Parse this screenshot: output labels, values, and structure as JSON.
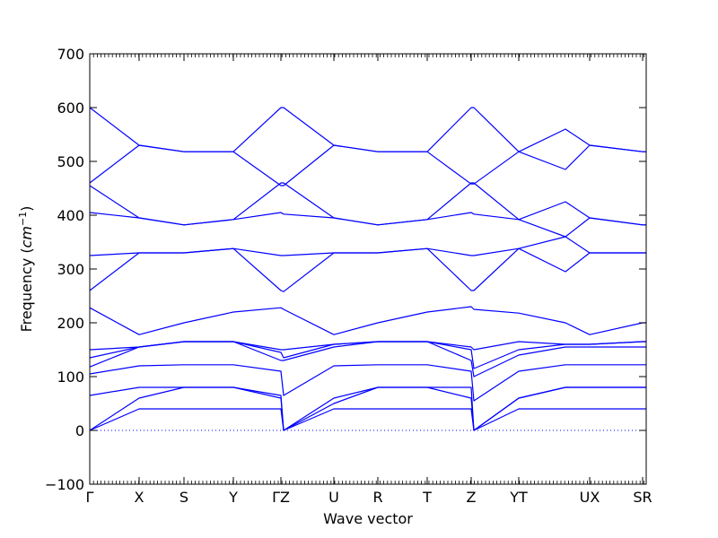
{
  "chart_data": {
    "type": "line",
    "title": "",
    "xlabel": "Wave vector",
    "ylabel_main": "Frequency (",
    "ylabel_unit": "cm",
    "ylabel_exp": "−1",
    "ylabel_close": ")",
    "ylim": [
      -100,
      700
    ],
    "yticks": [
      -100,
      0,
      100,
      200,
      300,
      400,
      500,
      600,
      700
    ],
    "x_tick_labels": [
      "Γ",
      "X",
      "S",
      "Y",
      "ΓZ",
      "U",
      "R",
      "T",
      "Z",
      "YT",
      "UX",
      "SR"
    ],
    "x_segments": [
      {
        "from": "Γ",
        "to": "X"
      },
      {
        "from": "X",
        "to": "S"
      },
      {
        "from": "S",
        "to": "Y"
      },
      {
        "from": "Y",
        "to": "Γ"
      },
      {
        "from": "Z",
        "to": "U"
      },
      {
        "from": "U",
        "to": "R"
      },
      {
        "from": "R",
        "to": "T"
      },
      {
        "from": "T",
        "to": "Z"
      },
      {
        "from": "Z",
        "to": "Y"
      },
      {
        "from": "T",
        "to": "U"
      },
      {
        "from": "X",
        "to": "S"
      },
      {
        "from": "R",
        "to": ""
      }
    ],
    "grid": false,
    "line_color": "#0000ff",
    "zero_line_color": "#0000ff",
    "zero_line_style": "dotted",
    "bands": [
      [
        0,
        40,
        40,
        40,
        40,
        0,
        40,
        40,
        40,
        40,
        0,
        40,
        40,
        40,
        40,
        40
      ],
      [
        0,
        60,
        80,
        80,
        60,
        0,
        60,
        80,
        80,
        60,
        0,
        60,
        80,
        80,
        80,
        80
      ],
      [
        65,
        80,
        80,
        80,
        65,
        0,
        50,
        80,
        80,
        80,
        0,
        60,
        80,
        80,
        80,
        80
      ],
      [
        105,
        120,
        122,
        122,
        110,
        65,
        120,
        122,
        122,
        110,
        55,
        110,
        122,
        122,
        122,
        122
      ],
      [
        118,
        155,
        165,
        165,
        130,
        130,
        155,
        165,
        165,
        130,
        100,
        140,
        155,
        155,
        155,
        155
      ],
      [
        135,
        155,
        165,
        165,
        145,
        135,
        160,
        165,
        165,
        150,
        115,
        150,
        160,
        160,
        165,
        165
      ],
      [
        150,
        155,
        165,
        165,
        150,
        150,
        160,
        165,
        165,
        155,
        150,
        165,
        160,
        160,
        165,
        165
      ],
      [
        228,
        178,
        200,
        220,
        228,
        225,
        178,
        200,
        220,
        230,
        225,
        218,
        200,
        178,
        200,
        200
      ],
      [
        260,
        330,
        330,
        338,
        260,
        258,
        330,
        330,
        338,
        260,
        260,
        338,
        295,
        330,
        330,
        330
      ],
      [
        325,
        330,
        330,
        338,
        325,
        325,
        330,
        330,
        338,
        325,
        325,
        338,
        360,
        330,
        330,
        330
      ],
      [
        405,
        395,
        382,
        392,
        405,
        402,
        395,
        382,
        392,
        405,
        402,
        392,
        425,
        395,
        382,
        382
      ],
      [
        455,
        395,
        382,
        392,
        460,
        460,
        395,
        382,
        392,
        460,
        460,
        392,
        360,
        395,
        382,
        382
      ],
      [
        460,
        530,
        518,
        518,
        455,
        455,
        530,
        518,
        518,
        458,
        458,
        518,
        485,
        530,
        518,
        518
      ],
      [
        600,
        530,
        518,
        518,
        600,
        600,
        530,
        518,
        518,
        600,
        600,
        518,
        560,
        530,
        518,
        518
      ]
    ]
  }
}
